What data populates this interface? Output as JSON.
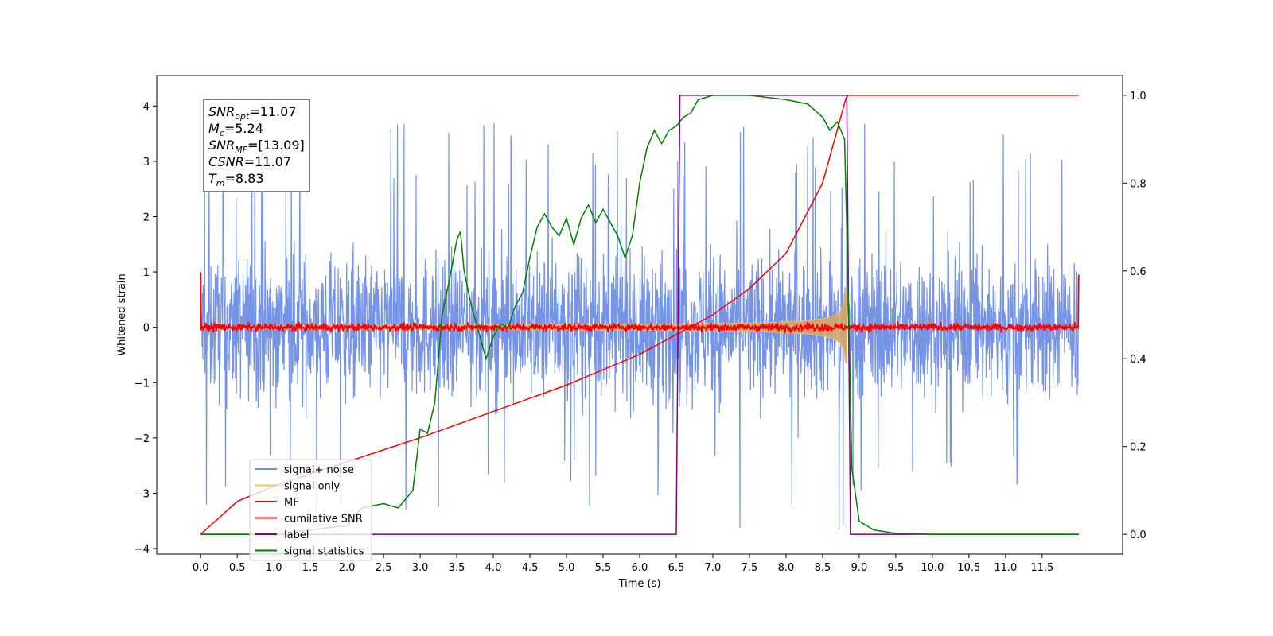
{
  "chart_data": {
    "type": "line",
    "title": "",
    "xlabel": "Time (s)",
    "ylabel": "Whitened strain",
    "y2label": "",
    "xlim": [
      -0.6,
      12.6
    ],
    "ylim": [
      -4.1,
      4.55
    ],
    "y2lim": [
      -0.045,
      1.045
    ],
    "xticks": [
      0.0,
      0.5,
      1.0,
      1.5,
      2.0,
      2.5,
      3.0,
      3.5,
      4.0,
      4.5,
      5.0,
      5.5,
      6.0,
      6.5,
      7.0,
      7.5,
      8.0,
      8.5,
      9.0,
      9.5,
      10.0,
      10.5,
      11.0,
      11.5
    ],
    "xtick_labels": [
      "0.0",
      "0.5",
      "1.0",
      "1.5",
      "2.0",
      "2.5",
      "3.0",
      "3.5",
      "4.0",
      "4.5",
      "5.0",
      "5.5",
      "6.0",
      "6.5",
      "7.0",
      "7.5",
      "8.0",
      "8.5",
      "9.0",
      "9.5",
      "10.0",
      "10.5",
      "11.0",
      "11.5"
    ],
    "yticks": [
      -4,
      -3,
      -2,
      -1,
      0,
      1,
      2,
      3,
      4
    ],
    "ytick_labels": [
      "−4",
      "−3",
      "−2",
      "−1",
      "0",
      "1",
      "2",
      "3",
      "4"
    ],
    "y2ticks": [
      0.0,
      0.2,
      0.4,
      0.6,
      0.8,
      1.0
    ],
    "y2tick_labels": [
      "0.0",
      "0.2",
      "0.4",
      "0.6",
      "0.8",
      "1.0"
    ],
    "legend_position": "lower-left",
    "grid": false,
    "annotation_box": [
      {
        "main": "SNR",
        "sub": "opt",
        "value": "=11.07"
      },
      {
        "main": "M",
        "sub": "c",
        "value": "=5.24"
      },
      {
        "main": "SNR",
        "sub": "MF",
        "value": "=[13.09]"
      },
      {
        "main": "CSNR",
        "sub": "",
        "value": "=11.07"
      },
      {
        "main": "T",
        "sub": "m",
        "value": "=8.83"
      }
    ],
    "series": [
      {
        "name": "signal+ noise",
        "axis": "left",
        "color": "#6f8ee6",
        "style": "noise",
        "x_range": [
          0,
          12
        ],
        "typical_amplitude": 1.3,
        "max_peak": 4.15,
        "min_peak": -3.65
      },
      {
        "name": "signal only",
        "axis": "left",
        "color": "#f5c26b",
        "style": "chirp",
        "x_range": [
          0,
          8.83
        ],
        "merger_time": 8.83,
        "start_amplitude": 0.03,
        "peak_amplitude": 0.75
      },
      {
        "name": "MF",
        "axis": "left",
        "color": "#ff0000",
        "style": "noise",
        "x_range": [
          0,
          12
        ],
        "typical_amplitude": 0.08,
        "start_value": 1.0,
        "end_value": 0.95
      },
      {
        "name": "cumilative SNR",
        "axis": "right",
        "color": "#ff0000",
        "style": "line",
        "x": [
          0,
          0.5,
          1.0,
          2.0,
          3.0,
          4.0,
          5.0,
          6.0,
          6.5,
          7.0,
          7.5,
          8.0,
          8.5,
          8.83,
          12
        ],
        "y": [
          0.0,
          0.075,
          0.11,
          0.165,
          0.22,
          0.28,
          0.34,
          0.41,
          0.455,
          0.5,
          0.56,
          0.64,
          0.8,
          1.0,
          1.0
        ]
      },
      {
        "name": "label",
        "axis": "right",
        "color": "#800080",
        "style": "line",
        "x": [
          0,
          6.5,
          6.55,
          8.83,
          8.88,
          12
        ],
        "y": [
          0,
          0,
          1,
          1,
          0,
          0
        ]
      },
      {
        "name": "signal statistics",
        "axis": "right",
        "color": "#007f00",
        "style": "line",
        "x": [
          0,
          1,
          2,
          2.2,
          2.5,
          2.7,
          2.9,
          3.0,
          3.1,
          3.2,
          3.3,
          3.4,
          3.5,
          3.55,
          3.6,
          3.7,
          3.8,
          3.9,
          4.0,
          4.1,
          4.2,
          4.3,
          4.4,
          4.5,
          4.6,
          4.7,
          4.8,
          4.9,
          5.0,
          5.1,
          5.2,
          5.3,
          5.4,
          5.5,
          5.6,
          5.7,
          5.8,
          5.9,
          6.0,
          6.1,
          6.2,
          6.3,
          6.4,
          6.5,
          6.6,
          6.7,
          6.8,
          7.0,
          7.5,
          8.0,
          8.3,
          8.5,
          8.6,
          8.7,
          8.8,
          8.83,
          8.9,
          9.0,
          9.2,
          9.5,
          10,
          12
        ],
        "y": [
          0,
          0,
          0.02,
          0.06,
          0.07,
          0.06,
          0.1,
          0.24,
          0.23,
          0.3,
          0.5,
          0.58,
          0.67,
          0.69,
          0.6,
          0.52,
          0.46,
          0.4,
          0.45,
          0.48,
          0.47,
          0.52,
          0.55,
          0.63,
          0.7,
          0.73,
          0.7,
          0.68,
          0.72,
          0.66,
          0.72,
          0.75,
          0.71,
          0.74,
          0.71,
          0.68,
          0.63,
          0.68,
          0.8,
          0.88,
          0.92,
          0.89,
          0.92,
          0.93,
          0.95,
          0.96,
          0.99,
          1.0,
          1.0,
          0.99,
          0.98,
          0.95,
          0.92,
          0.94,
          0.9,
          0.7,
          0.15,
          0.03,
          0.01,
          0.002,
          0.0,
          0.0
        ]
      }
    ]
  }
}
